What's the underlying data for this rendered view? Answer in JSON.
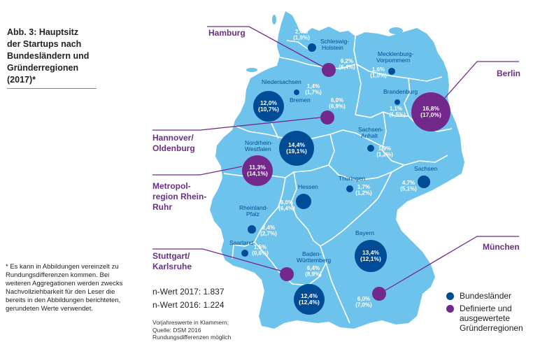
{
  "title": [
    "Abb. 3:  Hauptsitz",
    "der Startups nach",
    "Bundesländern und",
    "Gründerregionen",
    "(2017)*"
  ],
  "footnote": "*  Es kann in Abbildungen vereinzelt zu Rundungsdifferenzen kommen. Bei weiteren Aggregationen werden zwecks Nachvollziehbarkeit für den Leser die bereits in den Abbildungen berichteten, gerundeten Werte verwendet.",
  "n_wert_2017": "n-Wert 2017: 1.837",
  "n_wert_2016": "n-Wert 2016: 1.224",
  "source": [
    "Vorjahreswerte in Klammern;",
    "Quelle: DSM 2016",
    "Rundungsdifferenzen möglich"
  ],
  "colors": {
    "land_fill": "#6ec3ec",
    "land_border": "#ffffff",
    "bundesland_marker": "#004b96",
    "region_marker": "#73288c",
    "region_text": "#6b2f8a",
    "value_text": "#ffffff",
    "state_name_text": "#004b96"
  },
  "states": [
    {
      "name": "Schleswig-Holstein",
      "value": "2,4%",
      "prev": "(1,9%)"
    },
    {
      "name": "Mecklenburg-Vorpommern",
      "value": "1,6%",
      "prev": "(1,0%)"
    },
    {
      "name": "Niedersachsen",
      "value": "1,4%",
      "prev": "(1,7%)"
    },
    {
      "name": "Bremen",
      "value": "12,0%",
      "prev": "(10,7%)"
    },
    {
      "name": "Brandenburg",
      "value": "1,1%",
      "prev": "(1,5%)"
    },
    {
      "name": "Nordrhein-Westfalen",
      "value": "14,4%",
      "prev": "(19,1%)"
    },
    {
      "name": "Sachsen-Anhalt",
      "value": "1,9%",
      "prev": "(1,2%)"
    },
    {
      "name": "Sachsen",
      "value": "4,7%",
      "prev": "(5,1%)"
    },
    {
      "name": "Thüringen",
      "value": "1,7%",
      "prev": "(1,2%)"
    },
    {
      "name": "Hessen",
      "value": "6,0%",
      "prev": "(6,4%)"
    },
    {
      "name": "Rheinland-Pfalz",
      "value": "2,4%",
      "prev": "(2,7%)"
    },
    {
      "name": "Saarland",
      "value": "1,5%",
      "prev": "(0,6%)"
    },
    {
      "name": "Bayern",
      "value": "13,4%",
      "prev": "(12,1%)"
    },
    {
      "name": "Baden-Württemberg",
      "value": "12,4%",
      "prev": "(12,4%)"
    }
  ],
  "regions": [
    {
      "name": "Hamburg",
      "value": "6,2%",
      "prev": "(6,4%)"
    },
    {
      "name": "Berlin",
      "value": "16,8%",
      "prev": "(17,0%)"
    },
    {
      "name": "Hannover/ Oldenburg",
      "value": "6,0%",
      "prev": "(6,9%)"
    },
    {
      "name": "Metropol- region Rhein-Ruhr",
      "value": "11,3%",
      "prev": "(14,1%)"
    },
    {
      "name": "Stuttgart/ Karlsruhe",
      "value": "6,4%",
      "prev": "(8,9%)"
    },
    {
      "name": "München",
      "value": "6,0%",
      "prev": "(7,0%)"
    }
  ],
  "legend": [
    {
      "label": "Bundesländer",
      "color": "#004b96"
    },
    {
      "label": "Definierte und ausgewertete Gründerregionen",
      "color": "#73288c"
    }
  ]
}
